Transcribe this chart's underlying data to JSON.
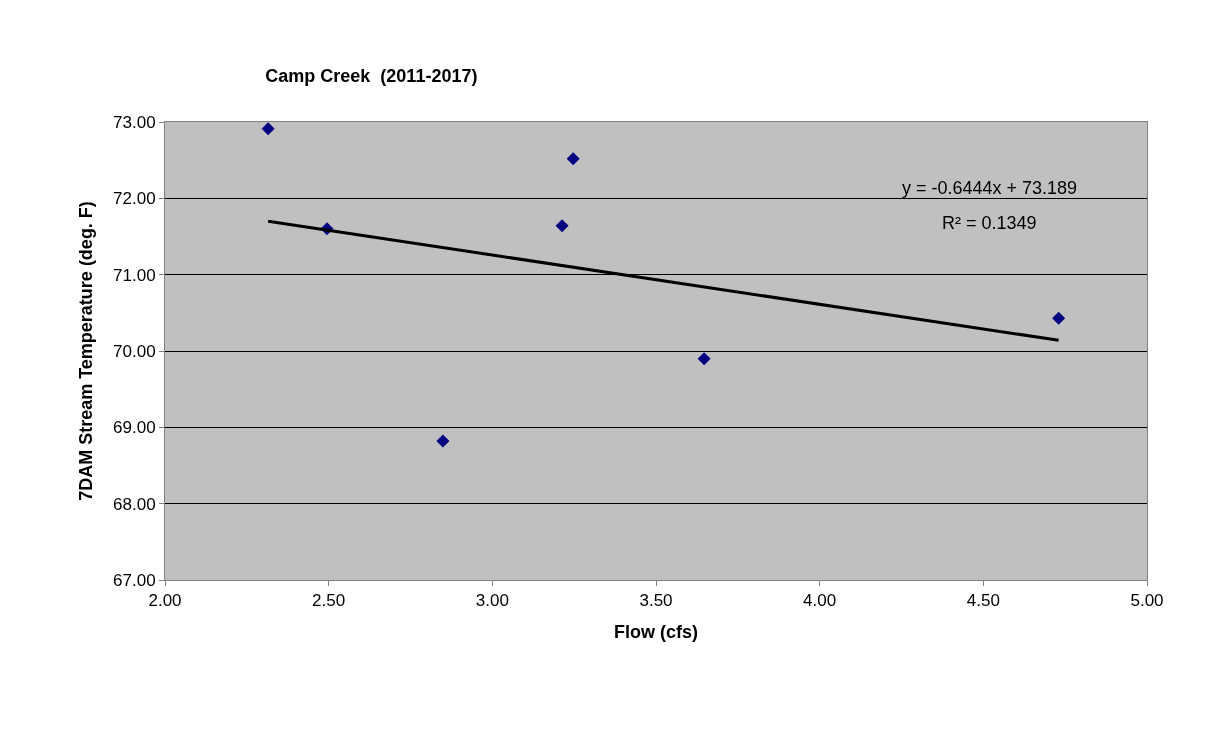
{
  "chart_data": {
    "type": "scatter",
    "title": "Camp Creek  (2011-2017)",
    "xlabel": "Flow (cfs)",
    "ylabel": "7DAM Stream Temperature (deg. F)",
    "series": [
      {
        "color": "#000080",
        "marker": "diamond",
        "x": [
          2.315,
          2.495,
          2.849,
          3.213,
          3.247,
          3.647,
          4.73
        ],
        "values": [
          72.91,
          71.6,
          68.82,
          71.64,
          72.52,
          69.9,
          70.43
        ]
      },
      {
        "type": "line",
        "color": "#000000",
        "x": [
          2.315,
          4.73
        ],
        "values": [
          71.7,
          70.14
        ]
      }
    ],
    "annotations": [
      "y = -0.6444x + 73.189",
      "R² = 0.1349"
    ],
    "xlim": [
      2.0,
      5.0
    ],
    "ylim": [
      67.0,
      73.0
    ],
    "xticks": [
      {
        "value": 2.0,
        "label": "2.00"
      },
      {
        "value": 2.5,
        "label": "2.50"
      },
      {
        "value": 3.0,
        "label": "3.00"
      },
      {
        "value": 3.5,
        "label": "3.50"
      },
      {
        "value": 4.0,
        "label": "4.00"
      },
      {
        "value": 4.5,
        "label": "4.50"
      },
      {
        "value": 5.0,
        "label": "5.00"
      }
    ],
    "yticks": [
      {
        "value": 67.0,
        "label": "67.00"
      },
      {
        "value": 68.0,
        "label": "68.00"
      },
      {
        "value": 69.0,
        "label": "69.00"
      },
      {
        "value": 70.0,
        "label": "70.00"
      },
      {
        "value": 71.0,
        "label": "71.00"
      },
      {
        "value": 72.0,
        "label": "72.00"
      },
      {
        "value": 73.0,
        "label": "73.00"
      }
    ],
    "grid": "y"
  }
}
